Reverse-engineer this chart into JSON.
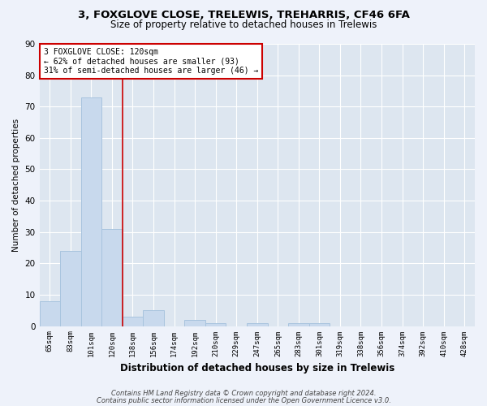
{
  "title1": "3, FOXGLOVE CLOSE, TRELEWIS, TREHARRIS, CF46 6FA",
  "title2": "Size of property relative to detached houses in Trelewis",
  "xlabel": "Distribution of detached houses by size in Trelewis",
  "ylabel": "Number of detached properties",
  "categories": [
    "65sqm",
    "83sqm",
    "101sqm",
    "120sqm",
    "138sqm",
    "156sqm",
    "174sqm",
    "192sqm",
    "210sqm",
    "229sqm",
    "247sqm",
    "265sqm",
    "283sqm",
    "301sqm",
    "319sqm",
    "338sqm",
    "356sqm",
    "374sqm",
    "392sqm",
    "410sqm",
    "428sqm"
  ],
  "values": [
    8,
    24,
    73,
    31,
    3,
    5,
    0,
    2,
    1,
    0,
    1,
    0,
    1,
    1,
    0,
    0,
    0,
    0,
    0,
    0,
    0
  ],
  "bar_color": "#c8d9ed",
  "bar_edge_color": "#a8c4de",
  "highlight_index": 3,
  "highlight_line_color": "#cc0000",
  "annotation_line1": "3 FOXGLOVE CLOSE: 120sqm",
  "annotation_line2": "← 62% of detached houses are smaller (93)",
  "annotation_line3": "31% of semi-detached houses are larger (46) →",
  "ylim": [
    0,
    90
  ],
  "yticks": [
    0,
    10,
    20,
    30,
    40,
    50,
    60,
    70,
    80,
    90
  ],
  "footer1": "Contains HM Land Registry data © Crown copyright and database right 2024.",
  "footer2": "Contains public sector information licensed under the Open Government Licence v3.0.",
  "bg_color": "#eef2fa",
  "plot_bg_color": "#dde6f0"
}
